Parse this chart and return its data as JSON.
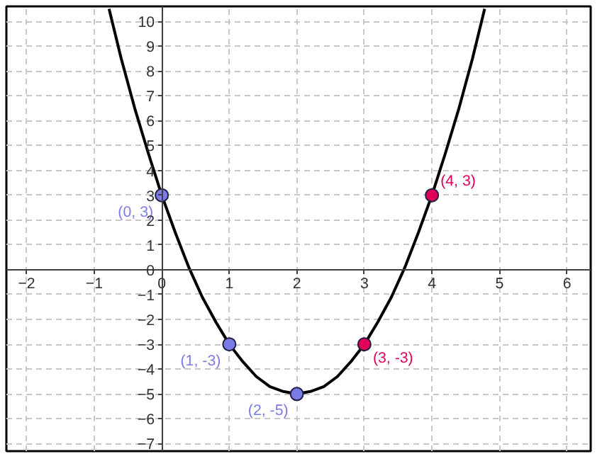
{
  "chart_data": {
    "type": "line",
    "xlim": [
      -2.3,
      6.35
    ],
    "ylim": [
      -7.3,
      10.6
    ],
    "xticks": [
      -2,
      -1,
      0,
      1,
      2,
      3,
      4,
      5,
      6
    ],
    "yticks": [
      -7,
      -6,
      -5,
      -4,
      -3,
      -2,
      -1,
      0,
      1,
      2,
      3,
      4,
      5,
      6,
      7,
      8,
      9,
      10
    ],
    "grid": true,
    "series": [
      {
        "color": "#000000",
        "marker": "none",
        "x": [
          -0.78,
          -0.6,
          -0.4,
          -0.2,
          0,
          0.2,
          0.4,
          0.6,
          0.8,
          1,
          1.2,
          1.4,
          1.6,
          1.8,
          2,
          2.2,
          2.4,
          2.6,
          2.8,
          3,
          3.2,
          3.4,
          3.6,
          3.8,
          4,
          4.2,
          4.4,
          4.6,
          4.78
        ],
        "values": [
          10.5,
          8.5,
          6.5,
          4.7,
          3,
          1.5,
          0.1,
          -1.1,
          -2.1,
          -3,
          -3.7,
          -4.3,
          -4.7,
          -4.9,
          -5,
          -4.9,
          -4.7,
          -4.3,
          -3.7,
          -3,
          -2.1,
          -1.1,
          0.1,
          1.5,
          3,
          4.7,
          6.5,
          8.5,
          10.5
        ]
      },
      {
        "type": "scatter",
        "color": "#7b7be8",
        "marker": "circle",
        "x": [
          0,
          1,
          2
        ],
        "values": [
          3,
          -3,
          -5
        ]
      },
      {
        "type": "scatter",
        "color": "#e0005a",
        "marker": "circle",
        "x": [
          3,
          4
        ],
        "values": [
          -3,
          3
        ]
      }
    ],
    "annotations": [
      {
        "text": "(0, 3)",
        "x": 0,
        "y": 3
      },
      {
        "text": "(1, -3)",
        "x": 1,
        "y": -3
      },
      {
        "text": "(2, -5)",
        "x": 2,
        "y": -5
      },
      {
        "text": "(3, -3)",
        "x": 3,
        "y": -3
      },
      {
        "text": "(4, 3)",
        "x": 4,
        "y": 3
      }
    ]
  }
}
